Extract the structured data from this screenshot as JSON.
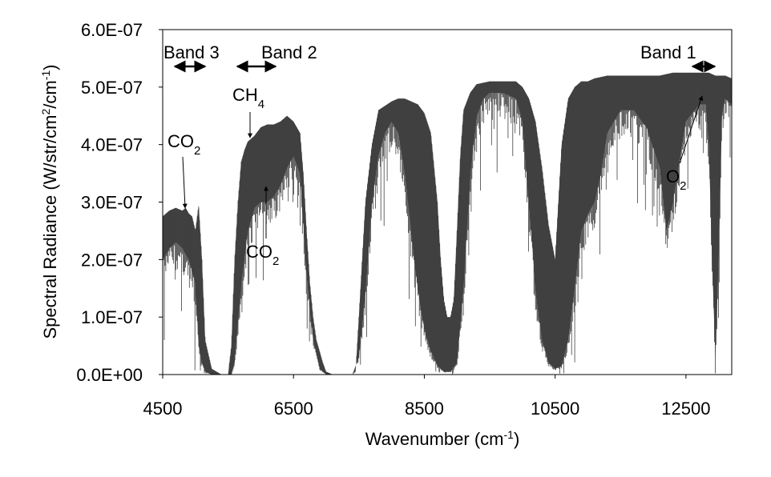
{
  "chart_data": {
    "type": "area",
    "title": "",
    "xlabel": {
      "main": "Wavenumber (cm",
      "sup": "-1",
      "tail": ")"
    },
    "ylabel": {
      "main": "Spectral Radiance  (W/str/cm",
      "sup1": "2",
      "mid": "/cm",
      "sup2": "-1",
      "tail": ")"
    },
    "xlim": [
      4500,
      13200
    ],
    "ylim": [
      0,
      6e-07
    ],
    "xticks": [
      4500,
      6500,
      8500,
      10500,
      12500
    ],
    "xtick_labels": [
      "4500",
      "6500",
      "8500",
      "10500",
      "12500"
    ],
    "yticks": [
      0,
      1e-07,
      2e-07,
      3e-07,
      4e-07,
      5e-07,
      6e-07
    ],
    "ytick_labels": [
      "0.0E+00",
      "1.0E-07",
      "2.0E-07",
      "3.0E-07",
      "4.0E-07",
      "5.0E-07",
      "6.0E-07"
    ],
    "grid": false,
    "legend": "none",
    "series_color": "#404040",
    "upper_envelope": {
      "x": [
        4500,
        4600,
        4700,
        4800,
        4850,
        4900,
        4950,
        5000,
        5050,
        5100,
        5150,
        5250,
        5400,
        5500,
        5550,
        5600,
        5650,
        5700,
        5750,
        5800,
        5850,
        5900,
        6000,
        6100,
        6200,
        6300,
        6400,
        6500,
        6600,
        6650,
        6700,
        6750,
        6800,
        6850,
        6900,
        6950,
        7000,
        7100,
        7200,
        7300,
        7400,
        7450,
        7500,
        7550,
        7600,
        7700,
        7800,
        8000,
        8100,
        8200,
        8300,
        8400,
        8500,
        8600,
        8700,
        8750,
        8800,
        8850,
        8900,
        8950,
        9000,
        9050,
        9100,
        9200,
        9300,
        9500,
        9700,
        9900,
        10000,
        10100,
        10200,
        10300,
        10400,
        10500,
        10550,
        10600,
        10700,
        10800,
        10900,
        11000,
        11100,
        11300,
        11500,
        11700,
        11900,
        12100,
        12300,
        12500,
        12700,
        12850,
        12950,
        13050,
        13100,
        13200
      ],
      "y": [
        2.75e-07,
        2.85e-07,
        2.9e-07,
        2.85e-07,
        2.9e-07,
        2.8e-07,
        2.75e-07,
        2.5e-07,
        2.95e-07,
        2e-07,
        6e-08,
        1e-08,
        0,
        0,
        5e-08,
        2e-07,
        3e-07,
        3.7e-07,
        3.9e-07,
        4.05e-07,
        4.1e-07,
        4.15e-07,
        4.3e-07,
        4.35e-07,
        4.35e-07,
        4.4e-07,
        4.5e-07,
        4.4e-07,
        4.2e-07,
        3.5e-07,
        2.5e-07,
        1.6e-07,
        1e-07,
        6e-08,
        4e-08,
        2e-08,
        5e-09,
        0,
        0,
        0,
        0,
        5e-09,
        1e-07,
        2e-07,
        3e-07,
        4e-07,
        4.6e-07,
        4.75e-07,
        4.8e-07,
        4.8e-07,
        4.75e-07,
        4.7e-07,
        4.55e-07,
        4.2e-07,
        3e-07,
        2e-07,
        1.3e-07,
        1e-07,
        1e-07,
        1.3e-07,
        2.5e-07,
        3.8e-07,
        4.6e-07,
        4.9e-07,
        5.05e-07,
        5.1e-07,
        5.1e-07,
        5.1e-07,
        5e-07,
        4.8e-07,
        4.4e-07,
        3.6e-07,
        2.6e-07,
        2e-07,
        3e-07,
        4e-07,
        4.8e-07,
        5e-07,
        5.1e-07,
        5.1e-07,
        5.15e-07,
        5.2e-07,
        5.2e-07,
        5.2e-07,
        5.2e-07,
        5.2e-07,
        5.25e-07,
        5.25e-07,
        5.25e-07,
        5.25e-07,
        5.2e-07,
        5.2e-07,
        5.2e-07,
        5.15e-07
      ]
    },
    "lower_envelope": {
      "x": [
        4500,
        4600,
        4700,
        4800,
        4900,
        5000,
        5050,
        5100,
        5150,
        5250,
        5400,
        5500,
        5550,
        5600,
        5700,
        5800,
        5900,
        6000,
        6100,
        6200,
        6300,
        6400,
        6500,
        6600,
        6700,
        6800,
        6900,
        7000,
        7100,
        7200,
        7300,
        7400,
        7500,
        7600,
        7700,
        7800,
        7900,
        8000,
        8100,
        8200,
        8300,
        8400,
        8500,
        8600,
        8700,
        8800,
        8900,
        9000,
        9100,
        9200,
        9300,
        9400,
        9500,
        9700,
        9900,
        10000,
        10100,
        10200,
        10300,
        10400,
        10500,
        10600,
        10700,
        10800,
        10900,
        11000,
        11100,
        11200,
        11300,
        11500,
        11700,
        11900,
        12100,
        12200,
        12300,
        12500,
        12700,
        12800,
        12850,
        12900,
        12950,
        13000,
        13050,
        13100,
        13200
      ],
      "y": [
        2e-07,
        2.2e-07,
        2.3e-07,
        2.2e-07,
        2e-07,
        1.6e-07,
        5e-08,
        2e-08,
        5e-09,
        0,
        0,
        0,
        0,
        2e-08,
        1.6e-07,
        2.5e-07,
        2.9e-07,
        3e-07,
        3e-07,
        3.1e-07,
        3.3e-07,
        3.6e-07,
        3.8e-07,
        3.5e-07,
        1.8e-07,
        6e-08,
        1e-08,
        0,
        0,
        0,
        0,
        0,
        3e-08,
        1.5e-07,
        3e-07,
        3.8e-07,
        4.2e-07,
        4.4e-07,
        4.2e-07,
        3.5e-07,
        2.5e-07,
        1.5e-07,
        8e-08,
        4e-08,
        1.5e-08,
        5e-09,
        5e-09,
        2e-08,
        1.5e-07,
        3.5e-07,
        4.5e-07,
        4.8e-07,
        4.9e-07,
        4.9e-07,
        4.8e-07,
        4.4e-07,
        3e-07,
        1.5e-07,
        6e-08,
        2e-08,
        1e-08,
        1.5e-08,
        6e-08,
        1.5e-07,
        2.5e-07,
        2.8e-07,
        3e-07,
        3.5e-07,
        4.2e-07,
        4.6e-07,
        4.6e-07,
        4.3e-07,
        3.6e-07,
        2.5e-07,
        3e-07,
        4.4e-07,
        4.7e-07,
        4.7e-07,
        4e-07,
        2e-07,
        3e-08,
        2e-07,
        4.5e-07,
        4.8e-07,
        4.7e-07
      ]
    },
    "annotations": [
      {
        "name": "band-3",
        "text": "Band 3",
        "arrow": "double",
        "x_range": [
          4650,
          5150
        ]
      },
      {
        "name": "band-2",
        "text": "Band 2",
        "arrow": "double",
        "x_range": [
          5700,
          6300
        ]
      },
      {
        "name": "band-1",
        "text": "Band 1",
        "arrow": "double",
        "x_range": [
          12850,
          13200
        ]
      },
      {
        "name": "ch4",
        "main": "CH",
        "sub": "4",
        "point": [
          5950,
          4.1e-07
        ]
      },
      {
        "name": "co2-left",
        "main": "CO",
        "sub": "2",
        "point": [
          4860,
          2.9e-07
        ]
      },
      {
        "name": "co2-middle",
        "main": "CO",
        "sub": "2",
        "point": [
          6200,
          3.3e-07
        ]
      },
      {
        "name": "o2",
        "main": "O",
        "sub": "2",
        "point": [
          13040,
          4.8e-07
        ]
      }
    ]
  }
}
